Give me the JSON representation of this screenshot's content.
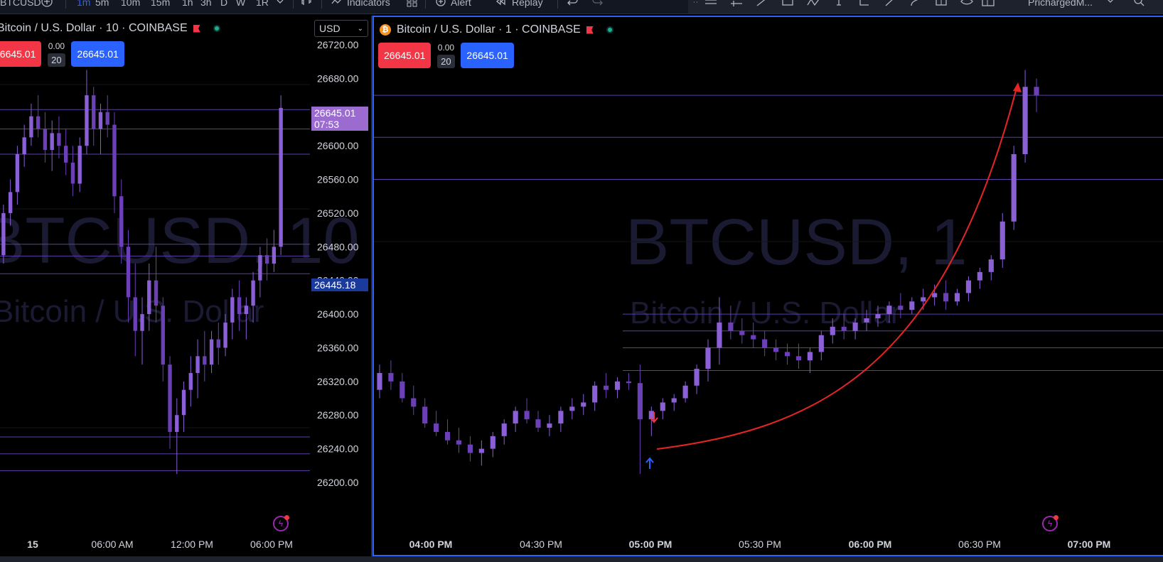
{
  "toolbar": {
    "symbol": "BTCUSD",
    "intervals": [
      "1m",
      "5m",
      "10m",
      "15m",
      "1h",
      "3h",
      "D",
      "W",
      "1R"
    ],
    "active_interval": "1m",
    "indicators_label": "Indicators",
    "alert_label": "Alert",
    "replay_label": "Replay",
    "layout_name": "PrichargedM..."
  },
  "left_chart": {
    "legend": "Bitcoin / U.S. Dollar · 10 · COINBASE",
    "sell_price": "26645.01",
    "spread": "0.00",
    "quantity": "20",
    "buy_price": "26645.01",
    "currency": "USD",
    "watermark_symbol": "BTCUSD, 10",
    "watermark_name": "Bitcoin / U.S. Dollar",
    "price_ticks": [
      "26720.00",
      "26680.00",
      "26640.00",
      "26600.00",
      "26560.00",
      "26520.00",
      "26480.00",
      "26440.00",
      "26400.00",
      "26360.00",
      "26320.00",
      "26280.00",
      "26240.00",
      "26200.00"
    ],
    "last_price_label": "26645.01",
    "countdown": "07:53",
    "marked_price_label": "26445.18",
    "time_ticks": [
      "15",
      "06:00 AM",
      "12:00 PM",
      "06:00 PM"
    ]
  },
  "right_chart": {
    "legend": "Bitcoin / U.S. Dollar · 1 · COINBASE",
    "sell_price": "26645.01",
    "spread": "0.00",
    "quantity": "20",
    "buy_price": "26645.01",
    "watermark_symbol": "BTCUSD, 1",
    "watermark_name": "Bitcoin / U.S. Dollar",
    "time_ticks": [
      "04:00 PM",
      "04:30 PM",
      "05:00 PM",
      "05:30 PM",
      "06:00 PM",
      "06:30 PM",
      "07:00 PM"
    ]
  },
  "chart_data": [
    {
      "type": "candlestick",
      "title": "Bitcoin / U.S. Dollar · 10 · COINBASE",
      "x_ticks": [
        "15",
        "06:00 AM",
        "12:00 PM",
        "06:00 PM"
      ],
      "ylim": [
        26180,
        26740
      ],
      "horizontal_levels": [
        26643,
        26620,
        26590,
        26483,
        26469,
        26448,
        26254,
        26234,
        26214
      ],
      "series": [
        {
          "name": "BTCUSD 10",
          "ohlc": [
            [
              26470,
              26530,
              26460,
              26520
            ],
            [
              26520,
              26560,
              26505,
              26545
            ],
            [
              26545,
              26600,
              26530,
              26590
            ],
            [
              26590,
              26625,
              26575,
              26610
            ],
            [
              26610,
              26650,
              26600,
              26635
            ],
            [
              26635,
              26660,
              26610,
              26620
            ],
            [
              26620,
              26640,
              26580,
              26595
            ],
            [
              26595,
              26630,
              26570,
              26615
            ],
            [
              26615,
              26635,
              26585,
              26600
            ],
            [
              26600,
              26620,
              26565,
              26580
            ],
            [
              26580,
              26600,
              26540,
              26555
            ],
            [
              26555,
              26610,
              26545,
              26600
            ],
            [
              26600,
              26690,
              26590,
              26660
            ],
            [
              26660,
              26670,
              26600,
              26620
            ],
            [
              26620,
              26650,
              26590,
              26640
            ],
            [
              26640,
              26660,
              26610,
              26625
            ],
            [
              26625,
              26640,
              26520,
              26540
            ],
            [
              26540,
              26560,
              26460,
              26480
            ],
            [
              26480,
              26500,
              26390,
              26420
            ],
            [
              26420,
              26460,
              26350,
              26380
            ],
            [
              26380,
              26420,
              26340,
              26400
            ],
            [
              26400,
              26460,
              26380,
              26440
            ],
            [
              26440,
              26480,
              26390,
              26410
            ],
            [
              26410,
              26420,
              26320,
              26340
            ],
            [
              26340,
              26350,
              26240,
              26260
            ],
            [
              26260,
              26300,
              26210,
              26280
            ],
            [
              26280,
              26320,
              26260,
              26310
            ],
            [
              26310,
              26350,
              26290,
              26330
            ],
            [
              26330,
              26370,
              26300,
              26350
            ],
            [
              26350,
              26380,
              26320,
              26340
            ],
            [
              26340,
              26380,
              26330,
              26370
            ],
            [
              26370,
              26390,
              26340,
              26360
            ],
            [
              26360,
              26400,
              26350,
              26390
            ],
            [
              26390,
              26430,
              26370,
              26420
            ],
            [
              26420,
              26440,
              26380,
              26400
            ],
            [
              26400,
              26420,
              26370,
              26410
            ],
            [
              26410,
              26450,
              26390,
              26440
            ],
            [
              26440,
              26480,
              26420,
              26470
            ],
            [
              26470,
              26490,
              26440,
              26460
            ],
            [
              26460,
              26500,
              26450,
              26480
            ],
            [
              26480,
              26660,
              26470,
              26645
            ]
          ]
        }
      ]
    },
    {
      "type": "candlestick",
      "title": "Bitcoin / U.S. Dollar · 1 · COINBASE",
      "x_ticks": [
        "04:00 PM",
        "04:30 PM",
        "05:00 PM",
        "05:30 PM",
        "06:00 PM",
        "06:30 PM",
        "07:00 PM"
      ],
      "ylim": [
        26180,
        26740
      ],
      "horizontal_levels": [
        26660,
        26610,
        26560,
        26400,
        26380,
        26360,
        26333
      ],
      "annotations": [
        {
          "type": "curved-arrow",
          "from": "05:00 PM",
          "to": "06:40 PM"
        },
        {
          "type": "arrow-down",
          "at": "05:00 PM"
        },
        {
          "type": "arrow-up",
          "at": "05:00 PM"
        }
      ],
      "series": [
        {
          "name": "BTCUSD 1",
          "ohlc": [
            [
              26310,
              26340,
              26300,
              26330
            ],
            [
              26330,
              26345,
              26310,
              26320
            ],
            [
              26320,
              26330,
              26295,
              26300
            ],
            [
              26300,
              26315,
              26280,
              26290
            ],
            [
              26290,
              26300,
              26265,
              26270
            ],
            [
              26270,
              26285,
              26255,
              26260
            ],
            [
              26260,
              26275,
              26245,
              26250
            ],
            [
              26250,
              26265,
              26235,
              26245
            ],
            [
              26245,
              26255,
              26225,
              26235
            ],
            [
              26235,
              26250,
              26220,
              26240
            ],
            [
              26240,
              26260,
              26230,
              26255
            ],
            [
              26255,
              26275,
              26245,
              26270
            ],
            [
              26270,
              26290,
              26260,
              26285
            ],
            [
              26285,
              26300,
              26270,
              26275
            ],
            [
              26275,
              26285,
              26260,
              26265
            ],
            [
              26265,
              26280,
              26255,
              26270
            ],
            [
              26270,
              26290,
              26260,
              26285
            ],
            [
              26285,
              26300,
              26275,
              26290
            ],
            [
              26290,
              26305,
              26280,
              26295
            ],
            [
              26295,
              26320,
              26285,
              26315
            ],
            [
              26315,
              26330,
              26300,
              26310
            ],
            [
              26310,
              26325,
              26300,
              26320
            ],
            [
              26320,
              26330,
              26310,
              26318
            ],
            [
              26318,
              26340,
              26210,
              26275
            ],
            [
              26275,
              26290,
              26255,
              26285
            ],
            [
              26285,
              26300,
              26275,
              26295
            ],
            [
              26295,
              26305,
              26285,
              26300
            ],
            [
              26300,
              26320,
              26295,
              26315
            ],
            [
              26315,
              26340,
              26305,
              26335
            ],
            [
              26335,
              26370,
              26320,
              26360
            ],
            [
              26360,
              26420,
              26340,
              26390
            ],
            [
              26390,
              26410,
              26370,
              26380
            ],
            [
              26380,
              26395,
              26365,
              26375
            ],
            [
              26375,
              26390,
              26360,
              26370
            ],
            [
              26370,
              26380,
              26350,
              26360
            ],
            [
              26360,
              26370,
              26345,
              26355
            ],
            [
              26355,
              26365,
              26340,
              26350
            ],
            [
              26350,
              26365,
              26335,
              26345
            ],
            [
              26345,
              26360,
              26330,
              26355
            ],
            [
              26355,
              26380,
              26345,
              26375
            ],
            [
              26375,
              26395,
              26365,
              26385
            ],
            [
              26385,
              26400,
              26370,
              26380
            ],
            [
              26380,
              26395,
              26370,
              26390
            ],
            [
              26390,
              26405,
              26380,
              26395
            ],
            [
              26395,
              26410,
              26385,
              26400
            ],
            [
              26400,
              26415,
              26390,
              26410
            ],
            [
              26410,
              26425,
              26395,
              26405
            ],
            [
              26405,
              26420,
              26400,
              26415
            ],
            [
              26415,
              26430,
              26405,
              26420
            ],
            [
              26420,
              26435,
              26410,
              26425
            ],
            [
              26425,
              26440,
              26405,
              26415
            ],
            [
              26415,
              26430,
              26410,
              26425
            ],
            [
              26425,
              26445,
              26415,
              26440
            ],
            [
              26440,
              26455,
              26430,
              26450
            ],
            [
              26450,
              26470,
              26440,
              26465
            ],
            [
              26465,
              26520,
              26455,
              26510
            ],
            [
              26510,
              26600,
              26500,
              26590
            ],
            [
              26590,
              26690,
              26580,
              26670
            ],
            [
              26670,
              26680,
              26640,
              26660
            ]
          ]
        }
      ]
    }
  ]
}
